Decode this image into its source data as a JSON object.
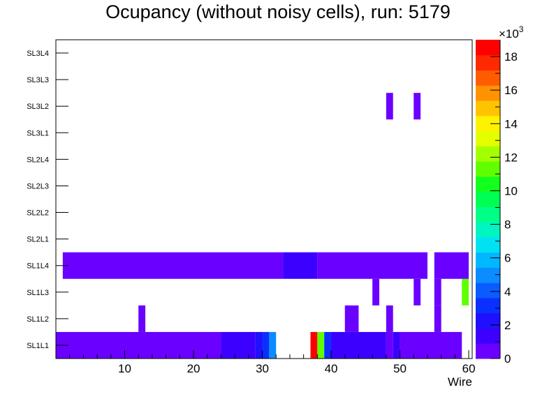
{
  "chart_data": {
    "type": "heatmap",
    "title": "Ocupancy (without noisy cells), run: 5179",
    "xlabel": "Wire",
    "ylabel": "",
    "xlim": [
      0,
      60.5
    ],
    "x_ticks": [
      10,
      20,
      30,
      40,
      50,
      60
    ],
    "y_categories": [
      "SL1L1",
      "SL1L2",
      "SL1L3",
      "SL1L4",
      "SL2L1",
      "SL2L2",
      "SL2L3",
      "SL2L4",
      "SL3L1",
      "SL3L2",
      "SL3L3",
      "SL3L4"
    ],
    "z_range": [
      0,
      19000
    ],
    "z_ticks": [
      0,
      2,
      4,
      6,
      8,
      10,
      12,
      14,
      16,
      18
    ],
    "z_exponent_label": "×10",
    "z_exponent_power": "3",
    "cells": [
      {
        "layer": "SL1L1",
        "wire_from": 0,
        "wire_to": 24,
        "value": 600
      },
      {
        "layer": "SL1L1",
        "wire_from": 24,
        "wire_to": 29,
        "value": 1600
      },
      {
        "layer": "SL1L1",
        "wire_from": 29,
        "wire_to": 30,
        "value": 2300
      },
      {
        "layer": "SL1L1",
        "wire_from": 30,
        "wire_to": 31,
        "value": 3200
      },
      {
        "layer": "SL1L1",
        "wire_from": 31,
        "wire_to": 32,
        "value": 5000
      },
      {
        "layer": "SL1L1",
        "wire_from": 37,
        "wire_to": 38,
        "value": 18600
      },
      {
        "layer": "SL1L1",
        "wire_from": 38,
        "wire_to": 39,
        "value": 11500
      },
      {
        "layer": "SL1L1",
        "wire_from": 39,
        "wire_to": 40,
        "value": 3100
      },
      {
        "layer": "SL1L1",
        "wire_from": 40,
        "wire_to": 48,
        "value": 1700
      },
      {
        "layer": "SL1L1",
        "wire_from": 48,
        "wire_to": 49,
        "value": 600
      },
      {
        "layer": "SL1L1",
        "wire_from": 49,
        "wire_to": 50,
        "value": 1700
      },
      {
        "layer": "SL1L1",
        "wire_from": 50,
        "wire_to": 59,
        "value": 600
      },
      {
        "layer": "SL1L2",
        "wire_from": 12,
        "wire_to": 13,
        "value": 600
      },
      {
        "layer": "SL1L2",
        "wire_from": 42,
        "wire_to": 44,
        "value": 600
      },
      {
        "layer": "SL1L2",
        "wire_from": 48,
        "wire_to": 49,
        "value": 600
      },
      {
        "layer": "SL1L2",
        "wire_from": 55,
        "wire_to": 56,
        "value": 600
      },
      {
        "layer": "SL1L3",
        "wire_from": 46,
        "wire_to": 47,
        "value": 600
      },
      {
        "layer": "SL1L3",
        "wire_from": 52,
        "wire_to": 53,
        "value": 600
      },
      {
        "layer": "SL1L3",
        "wire_from": 55,
        "wire_to": 56,
        "value": 600
      },
      {
        "layer": "SL1L3",
        "wire_from": 59,
        "wire_to": 60,
        "value": 11200
      },
      {
        "layer": "SL1L4",
        "wire_from": 1,
        "wire_to": 33,
        "value": 600
      },
      {
        "layer": "SL1L4",
        "wire_from": 33,
        "wire_to": 38,
        "value": 1200
      },
      {
        "layer": "SL1L4",
        "wire_from": 38,
        "wire_to": 54,
        "value": 600
      },
      {
        "layer": "SL1L4",
        "wire_from": 55,
        "wire_to": 60,
        "value": 600
      },
      {
        "layer": "SL3L2",
        "wire_from": 48,
        "wire_to": 49,
        "value": 600
      },
      {
        "layer": "SL3L2",
        "wire_from": 52,
        "wire_to": 53,
        "value": 600
      }
    ]
  }
}
